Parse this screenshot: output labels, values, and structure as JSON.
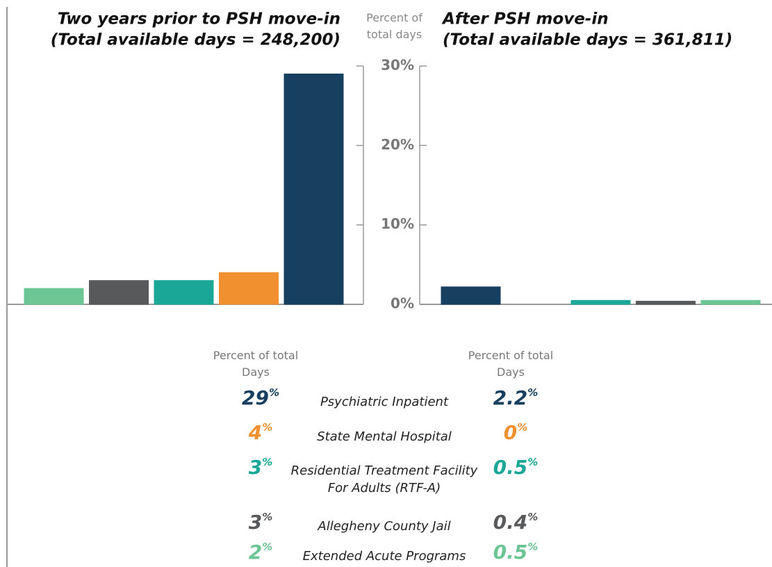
{
  "chart_data": {
    "type": "bar",
    "ylabel": "Percent of total days",
    "ylim": [
      0,
      30
    ],
    "yticks": [
      {
        "value": 0,
        "label": "0%"
      },
      {
        "value": 10,
        "label": "10%"
      },
      {
        "value": 20,
        "label": "20%"
      },
      {
        "value": 30,
        "label": "30%"
      }
    ],
    "categories": [
      "Psychiatric Inpatient",
      "State Mental Hospital",
      "Residential Treatment Facility For Adults (RTF-A)",
      "Allegheny County Jail",
      "Extended Acute Programs"
    ],
    "colors": [
      "#173f60",
      "#f0902f",
      "#1aa797",
      "#58595b",
      "#6cc594"
    ],
    "column_label": "Percent of total Days",
    "series": [
      {
        "name": "Two years prior to PSH move-in",
        "subtitle": "(Total available days = 248,200)",
        "values": [
          29,
          4,
          3,
          3,
          2
        ],
        "value_labels": [
          "29%",
          "4%",
          "3%",
          "3%",
          "2%"
        ]
      },
      {
        "name": "After PSH move-in",
        "subtitle": "(Total available days = 361,811)",
        "values": [
          2.2,
          0,
          0.5,
          0.4,
          0.5
        ],
        "value_labels": [
          "2.2%",
          "0%",
          "0.5%",
          "0.4%",
          "0.5%"
        ]
      }
    ]
  }
}
